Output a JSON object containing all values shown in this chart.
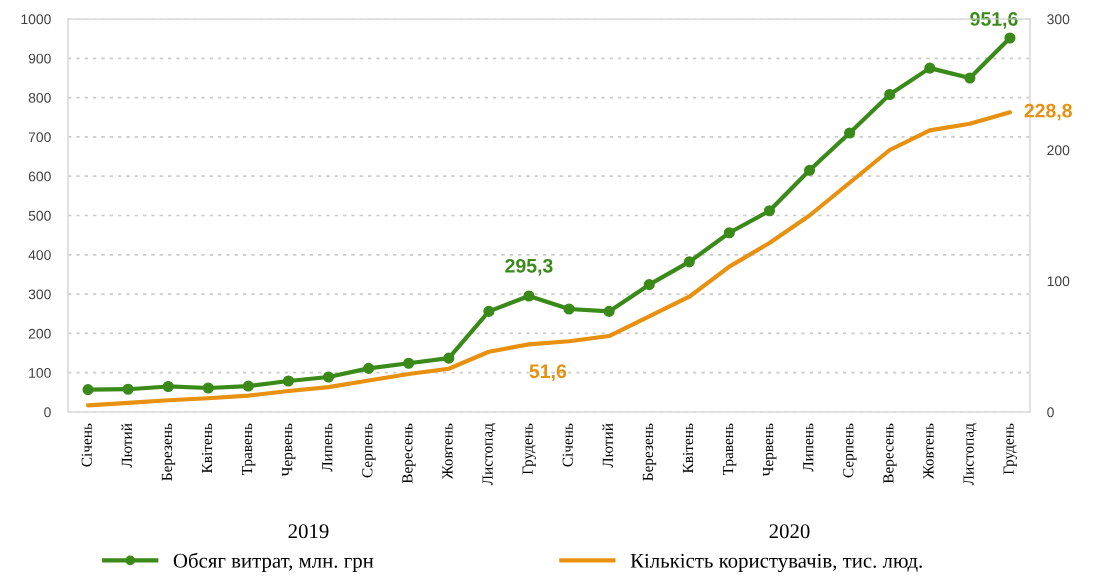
{
  "chart_data": {
    "type": "line",
    "categories": [
      "Січень",
      "Лютий",
      "Березень",
      "Квітень",
      "Травень",
      "Червень",
      "Липень",
      "Серпень",
      "Вересень",
      "Жовтень",
      "Листопад",
      "Грудень",
      "Січень",
      "Лютий",
      "Березень",
      "Квітень",
      "Травень",
      "Червень",
      "Липень",
      "Серпень",
      "Вересень",
      "Жовтень",
      "Листопад",
      "Грудень"
    ],
    "series": [
      {
        "name": "Обсяг витрат, млн. грн",
        "color": "#3a8a1a",
        "marker": "circle",
        "values": [
          57,
          58,
          65,
          61,
          66,
          79,
          89,
          111,
          124,
          137,
          256,
          295.3,
          262,
          256,
          324,
          382,
          456,
          512,
          615,
          710,
          808,
          875,
          850,
          951.6
        ],
        "value_labels": [
          null,
          null,
          null,
          null,
          null,
          null,
          null,
          null,
          null,
          null,
          null,
          "295,3",
          null,
          null,
          null,
          null,
          null,
          null,
          null,
          null,
          null,
          null,
          null,
          "951,6"
        ]
      },
      {
        "name": "Кількість користувачів, тис. люд.",
        "color": "#e8900f",
        "axis": "y2",
        "values": [
          5,
          7,
          9,
          10.5,
          12.5,
          16,
          19,
          24,
          29,
          33,
          46,
          51.6,
          54,
          58,
          73,
          88,
          111,
          129,
          150,
          175,
          200,
          215,
          220,
          228.8
        ],
        "value_labels": [
          null,
          null,
          null,
          null,
          null,
          null,
          null,
          null,
          null,
          null,
          null,
          "51,6",
          null,
          null,
          null,
          null,
          null,
          null,
          null,
          null,
          null,
          null,
          null,
          "228,8"
        ]
      }
    ],
    "ylim": [
      0,
      1000
    ],
    "yticks": [
      0,
      100,
      200,
      300,
      400,
      500,
      600,
      700,
      800,
      900,
      1000
    ],
    "y2lim": [
      0,
      300
    ],
    "y2ticks": [
      0,
      100,
      200,
      300
    ],
    "annotations": [
      "2019",
      "2020"
    ],
    "grid": "y",
    "legend": "bottom",
    "line_style": "solid"
  }
}
